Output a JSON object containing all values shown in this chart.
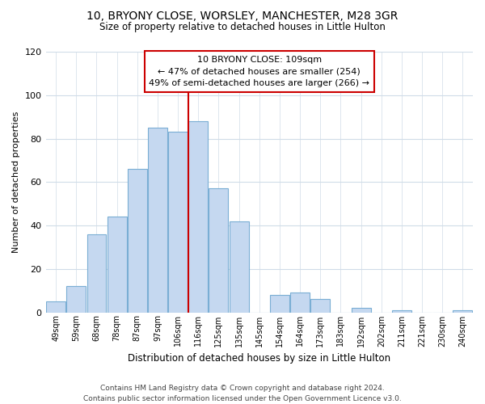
{
  "title1": "10, BRYONY CLOSE, WORSLEY, MANCHESTER, M28 3GR",
  "title2": "Size of property relative to detached houses in Little Hulton",
  "xlabel": "Distribution of detached houses by size in Little Hulton",
  "ylabel": "Number of detached properties",
  "categories": [
    "49sqm",
    "59sqm",
    "68sqm",
    "78sqm",
    "87sqm",
    "97sqm",
    "106sqm",
    "116sqm",
    "125sqm",
    "135sqm",
    "145sqm",
    "154sqm",
    "164sqm",
    "173sqm",
    "183sqm",
    "192sqm",
    "202sqm",
    "211sqm",
    "221sqm",
    "230sqm",
    "240sqm"
  ],
  "values": [
    5,
    12,
    36,
    44,
    66,
    85,
    83,
    88,
    57,
    42,
    0,
    8,
    9,
    6,
    0,
    2,
    0,
    1,
    0,
    0,
    1
  ],
  "bar_color": "#c5d8f0",
  "bar_edge_color": "#7aaed4",
  "vline_color": "#cc0000",
  "annotation_title": "10 BRYONY CLOSE: 109sqm",
  "annotation_line1": "← 47% of detached houses are smaller (254)",
  "annotation_line2": "49% of semi-detached houses are larger (266) →",
  "box_color": "#cc0000",
  "footer1": "Contains HM Land Registry data © Crown copyright and database right 2024.",
  "footer2": "Contains public sector information licensed under the Open Government Licence v3.0.",
  "ylim": [
    0,
    120
  ],
  "yticks": [
    0,
    20,
    40,
    60,
    80,
    100,
    120
  ],
  "background_color": "#ffffff",
  "grid_color": "#d0dce8"
}
